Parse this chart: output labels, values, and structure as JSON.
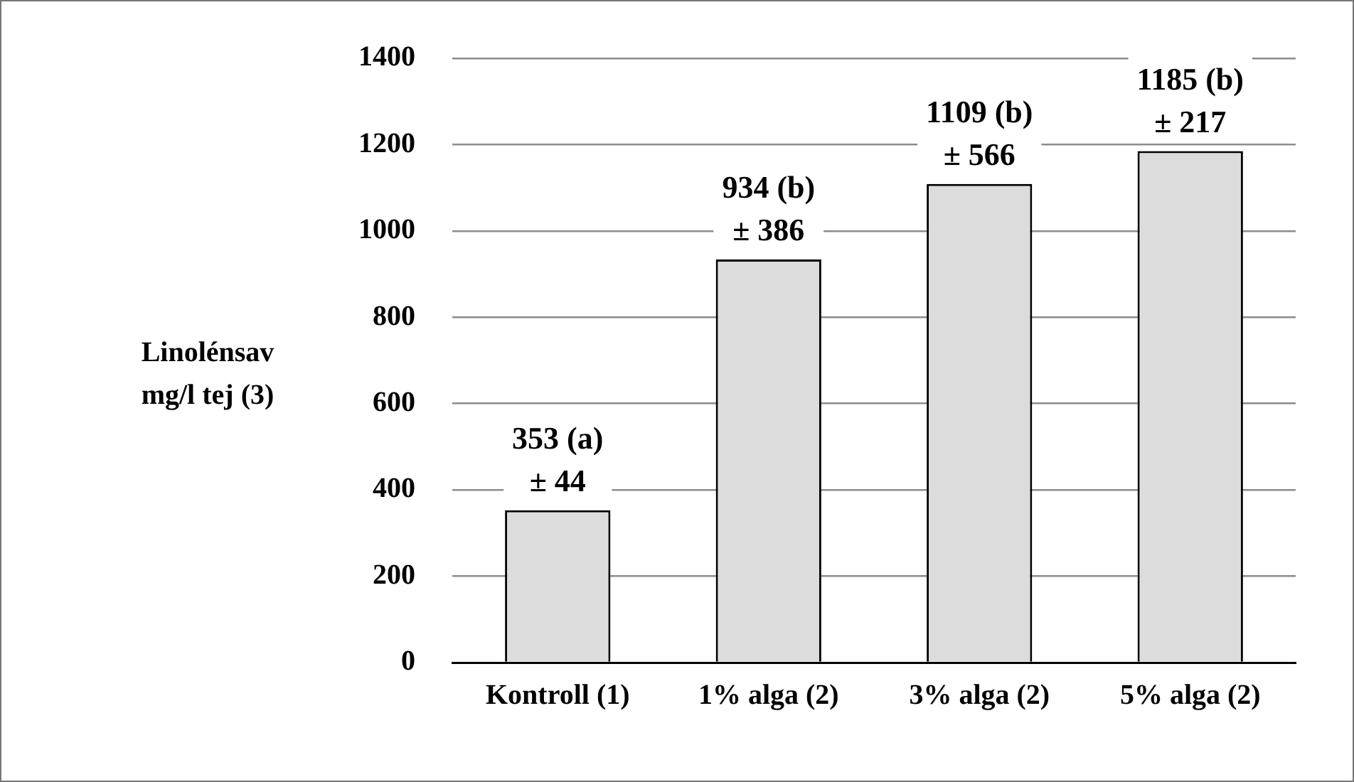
{
  "chart_data": {
    "type": "bar",
    "ylabel": "Linolénsav mg/l tej (3)",
    "categories": [
      "Kontroll (1)",
      "1% alga (2)",
      "3% alga (2)",
      "5% alga (2)"
    ],
    "values": [
      353,
      934,
      1109,
      1185
    ],
    "color": "#dcdcdc",
    "value_labels": [
      "353 (a)\n± 44",
      "934 (b)\n± 386",
      "1109 (b)\n± 566",
      "1185 (b)\n± 217"
    ],
    "ylim": [
      0,
      1400
    ],
    "yticks": [
      0,
      200,
      400,
      600,
      800,
      1000,
      1200,
      1400
    ],
    "grid": "y",
    "legend": false
  }
}
